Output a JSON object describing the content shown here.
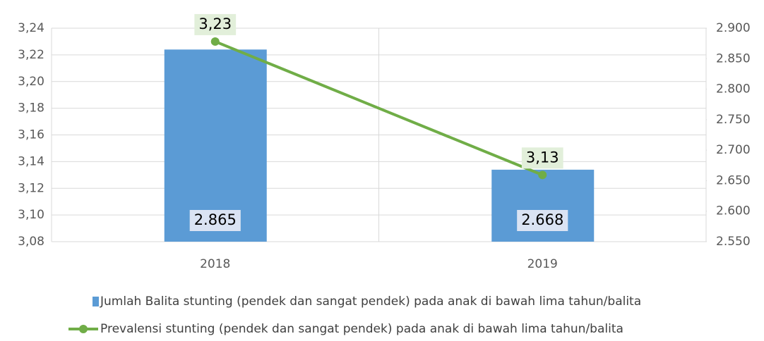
{
  "chart_data": {
    "type": "bar_line",
    "categories": [
      "2018",
      "2019"
    ],
    "series": [
      {
        "name": "Jumlah Balita stunting (pendek dan sangat pendek) pada anak di bawah lima tahun/balita",
        "type": "bar",
        "axis": "y2",
        "color": "#5b9bd5",
        "values": [
          2865,
          2668
        ],
        "value_labels": [
          "2.865",
          "2.668"
        ]
      },
      {
        "name": "Prevalensi stunting (pendek dan sangat pendek) pada anak di bawah lima tahun/balita",
        "type": "line",
        "color": "#70ad47",
        "values": [
          3.23,
          3.13
        ],
        "value_labels": [
          "3,23",
          "3,13"
        ]
      }
    ],
    "ylim": [
      3.08,
      3.24
    ],
    "yticks": [
      {
        "value": 3.08,
        "label": "3,08"
      },
      {
        "value": 3.1,
        "label": "3,10"
      },
      {
        "value": 3.12,
        "label": "3,12"
      },
      {
        "value": 3.14,
        "label": "3,14"
      },
      {
        "value": 3.16,
        "label": "3,16"
      },
      {
        "value": 3.18,
        "label": "3,18"
      },
      {
        "value": 3.2,
        "label": "3,20"
      },
      {
        "value": 3.22,
        "label": "3,22"
      },
      {
        "value": 3.24,
        "label": "3,24"
      }
    ],
    "y2lim": [
      2550,
      2900
    ],
    "y2ticks": [
      {
        "value": 2550,
        "label": "2.550"
      },
      {
        "value": 2600,
        "label": "2.600"
      },
      {
        "value": 2650,
        "label": "2.650"
      },
      {
        "value": 2700,
        "label": "2.700"
      },
      {
        "value": 2750,
        "label": "2.750"
      },
      {
        "value": 2800,
        "label": "2.800"
      },
      {
        "value": 2850,
        "label": "2.850"
      },
      {
        "value": 2900,
        "label": "2.900"
      }
    ],
    "grid": true,
    "legend": "bottom"
  }
}
